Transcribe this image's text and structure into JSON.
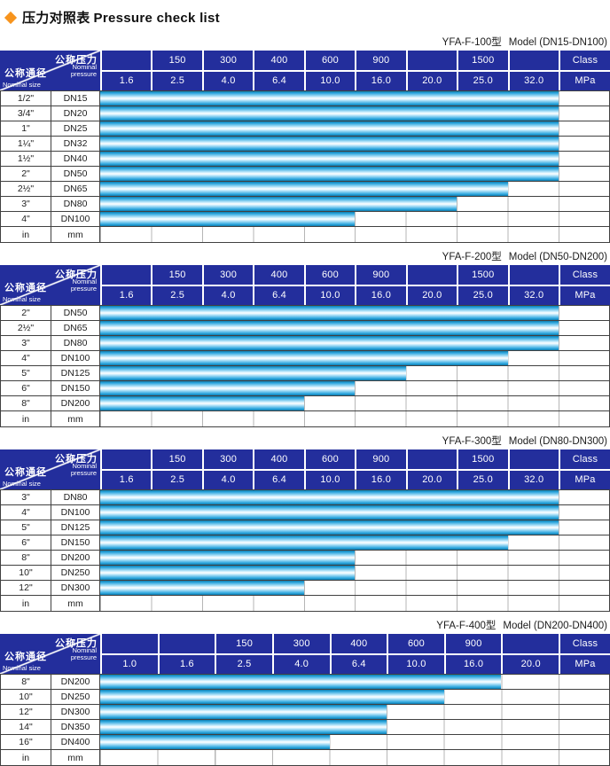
{
  "title": {
    "zh": "压力对照表",
    "en": "Pressure check list"
  },
  "corner": {
    "pressure_zh": "公称压力",
    "pressure_en": [
      "Nominal",
      "pressure"
    ],
    "size_zh": "公称通径",
    "size_en": "Nominal size"
  },
  "units": {
    "class_label": "Class",
    "mpa_label": "MPa"
  },
  "colors": {
    "header_bg": "#232E9C",
    "bar_main": "#2FA8DF",
    "bar_edge": "#0E7CAE",
    "diamond": "#F7941D"
  },
  "tables": [
    {
      "model": "YFA-F-100型",
      "range": "Model (DN15-DN100)",
      "class_row": [
        "",
        "150",
        "300",
        "400",
        "600",
        "900",
        "",
        "1500",
        ""
      ],
      "mpa_row": [
        "1.6",
        "2.5",
        "4.0",
        "6.4",
        "10.0",
        "16.0",
        "20.0",
        "25.0",
        "32.0"
      ],
      "rows": [
        {
          "size": "1/2\"",
          "dn": "DN15",
          "cols": 9
        },
        {
          "size": "3/4\"",
          "dn": "DN20",
          "cols": 9
        },
        {
          "size": "1\"",
          "dn": "DN25",
          "cols": 9
        },
        {
          "size": "1¼\"",
          "dn": "DN32",
          "cols": 9
        },
        {
          "size": "1½\"",
          "dn": "DN40",
          "cols": 9
        },
        {
          "size": "2\"",
          "dn": "DN50",
          "cols": 9
        },
        {
          "size": "2½\"",
          "dn": "DN65",
          "cols": 8
        },
        {
          "size": "3\"",
          "dn": "DN80",
          "cols": 7
        },
        {
          "size": "4\"",
          "dn": "DN100",
          "cols": 5
        },
        {
          "size": "in",
          "dn": "mm",
          "cols": 0
        }
      ]
    },
    {
      "model": "YFA-F-200型",
      "range": "Model (DN50-DN200)",
      "class_row": [
        "",
        "150",
        "300",
        "400",
        "600",
        "900",
        "",
        "1500",
        ""
      ],
      "mpa_row": [
        "1.6",
        "2.5",
        "4.0",
        "6.4",
        "10.0",
        "16.0",
        "20.0",
        "25.0",
        "32.0"
      ],
      "rows": [
        {
          "size": "2\"",
          "dn": "DN50",
          "cols": 9
        },
        {
          "size": "2½\"",
          "dn": "DN65",
          "cols": 9
        },
        {
          "size": "3\"",
          "dn": "DN80",
          "cols": 9
        },
        {
          "size": "4\"",
          "dn": "DN100",
          "cols": 8
        },
        {
          "size": "5\"",
          "dn": "DN125",
          "cols": 6
        },
        {
          "size": "6\"",
          "dn": "DN150",
          "cols": 5
        },
        {
          "size": "8\"",
          "dn": "DN200",
          "cols": 4
        },
        {
          "size": "in",
          "dn": "mm",
          "cols": 0
        }
      ]
    },
    {
      "model": "YFA-F-300型",
      "range": "Model (DN80-DN300)",
      "class_row": [
        "",
        "150",
        "300",
        "400",
        "600",
        "900",
        "",
        "1500",
        ""
      ],
      "mpa_row": [
        "1.6",
        "2.5",
        "4.0",
        "6.4",
        "10.0",
        "16.0",
        "20.0",
        "25.0",
        "32.0"
      ],
      "rows": [
        {
          "size": "3\"",
          "dn": "DN80",
          "cols": 9
        },
        {
          "size": "4\"",
          "dn": "DN100",
          "cols": 9
        },
        {
          "size": "5\"",
          "dn": "DN125",
          "cols": 9
        },
        {
          "size": "6\"",
          "dn": "DN150",
          "cols": 8
        },
        {
          "size": "8\"",
          "dn": "DN200",
          "cols": 5
        },
        {
          "size": "10\"",
          "dn": "DN250",
          "cols": 5
        },
        {
          "size": "12\"",
          "dn": "DN300",
          "cols": 4
        },
        {
          "size": "in",
          "dn": "mm",
          "cols": 0
        }
      ]
    },
    {
      "model": "YFA-F-400型",
      "range": "Model (DN200-DN400)",
      "class_row": [
        "",
        "",
        "150",
        "300",
        "400",
        "600",
        "900",
        ""
      ],
      "mpa_row": [
        "1.0",
        "1.6",
        "2.5",
        "4.0",
        "6.4",
        "10.0",
        "16.0",
        "20.0"
      ],
      "rows": [
        {
          "size": "8\"",
          "dn": "DN200",
          "cols": 7
        },
        {
          "size": "10\"",
          "dn": "DN250",
          "cols": 6
        },
        {
          "size": "12\"",
          "dn": "DN300",
          "cols": 5
        },
        {
          "size": "14\"",
          "dn": "DN350",
          "cols": 5
        },
        {
          "size": "16\"",
          "dn": "DN400",
          "cols": 4
        },
        {
          "size": "in",
          "dn": "mm",
          "cols": 0
        }
      ]
    }
  ],
  "chart_data": [
    {
      "type": "bar",
      "title": "YFA-F-100型 Model (DN15-DN100)",
      "categories": [
        "1/2\" DN15",
        "3/4\" DN20",
        "1\" DN25",
        "1¼\" DN32",
        "1½\" DN40",
        "2\" DN50",
        "2½\" DN65",
        "3\" DN80",
        "4\" DN100"
      ],
      "values": [
        32.0,
        32.0,
        32.0,
        32.0,
        32.0,
        32.0,
        25.0,
        20.0,
        10.0
      ],
      "xlabel": "公称压力 Nominal pressure (MPa)",
      "ylabel": "公称通径 Nominal size",
      "x_ticks_mpa": [
        1.6,
        2.5,
        4.0,
        6.4,
        10.0,
        16.0,
        20.0,
        25.0,
        32.0
      ],
      "x_ticks_class": [
        150,
        300,
        400,
        600,
        900,
        1500
      ]
    },
    {
      "type": "bar",
      "title": "YFA-F-200型 Model (DN50-DN200)",
      "categories": [
        "2\" DN50",
        "2½\" DN65",
        "3\" DN80",
        "4\" DN100",
        "5\" DN125",
        "6\" DN150",
        "8\" DN200"
      ],
      "values": [
        32.0,
        32.0,
        32.0,
        25.0,
        16.0,
        10.0,
        6.4
      ],
      "xlabel": "公称压力 Nominal pressure (MPa)",
      "ylabel": "公称通径 Nominal size",
      "x_ticks_mpa": [
        1.6,
        2.5,
        4.0,
        6.4,
        10.0,
        16.0,
        20.0,
        25.0,
        32.0
      ],
      "x_ticks_class": [
        150,
        300,
        400,
        600,
        900,
        1500
      ]
    },
    {
      "type": "bar",
      "title": "YFA-F-300型 Model (DN80-DN300)",
      "categories": [
        "3\" DN80",
        "4\" DN100",
        "5\" DN125",
        "6\" DN150",
        "8\" DN200",
        "10\" DN250",
        "12\" DN300"
      ],
      "values": [
        32.0,
        32.0,
        32.0,
        25.0,
        10.0,
        10.0,
        6.4
      ],
      "xlabel": "公称压力 Nominal pressure (MPa)",
      "ylabel": "公称通径 Nominal size",
      "x_ticks_mpa": [
        1.6,
        2.5,
        4.0,
        6.4,
        10.0,
        16.0,
        20.0,
        25.0,
        32.0
      ],
      "x_ticks_class": [
        150,
        300,
        400,
        600,
        900,
        1500
      ]
    },
    {
      "type": "bar",
      "title": "YFA-F-400型 Model (DN200-DN400)",
      "categories": [
        "8\" DN200",
        "10\" DN250",
        "12\" DN300",
        "14\" DN350",
        "16\" DN400"
      ],
      "values": [
        16.0,
        10.0,
        6.4,
        6.4,
        4.0
      ],
      "xlabel": "公称压力 Nominal pressure (MPa)",
      "ylabel": "公称通径 Nominal size",
      "x_ticks_mpa": [
        1.0,
        1.6,
        2.5,
        4.0,
        6.4,
        10.0,
        16.0,
        20.0
      ],
      "x_ticks_class": [
        150,
        300,
        400,
        600,
        900
      ]
    }
  ]
}
